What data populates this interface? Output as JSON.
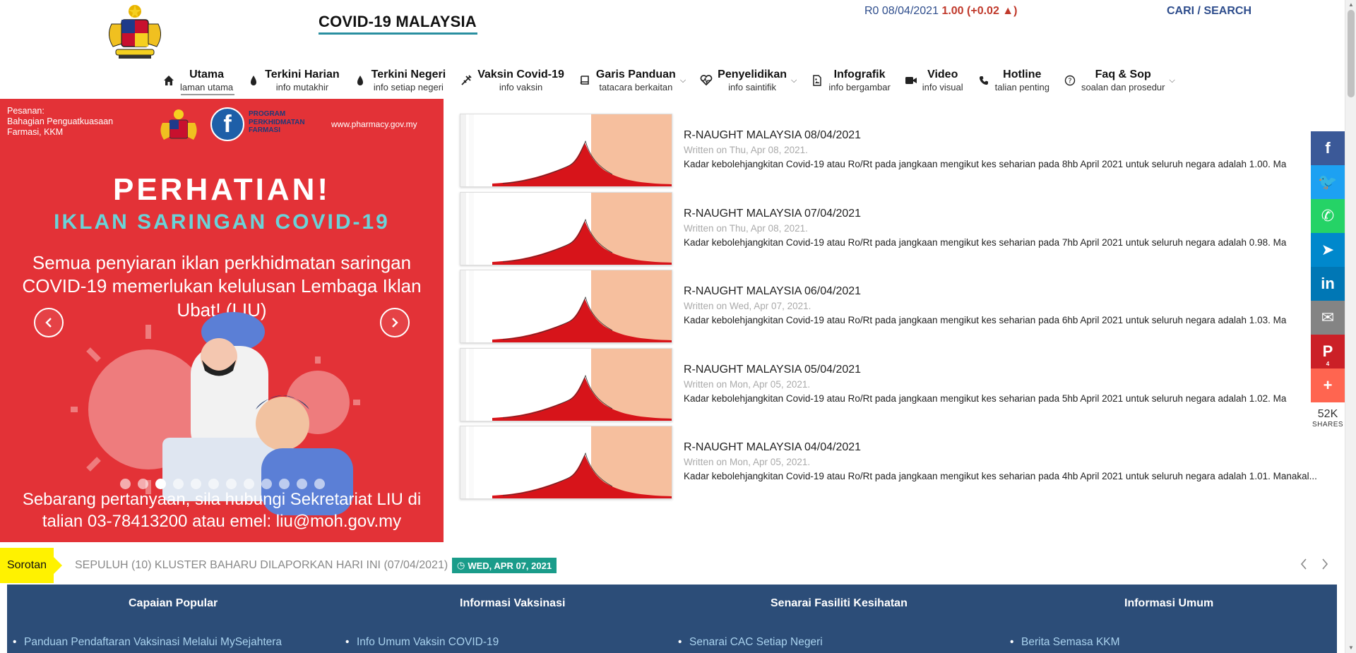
{
  "header": {
    "site_title": "COVID-19 MALAYSIA",
    "r0": {
      "prefix": "R0 08/04/2021",
      "value": "1.00 (+0.02 ▲)"
    },
    "search_link": "CARI / SEARCH"
  },
  "nav": [
    {
      "label": "Utama",
      "sub": "laman utama",
      "icon": "home-icon"
    },
    {
      "label": "Terkini Harian",
      "sub": "info mutakhir",
      "icon": "syringe-icon"
    },
    {
      "label": "Terkini Negeri",
      "sub": "info setiap negeri",
      "icon": "syringe-icon"
    },
    {
      "label": "Vaksin Covid-19",
      "sub": "info vaksin",
      "icon": "vaccine-icon"
    },
    {
      "label": "Garis Panduan",
      "sub": "tatacara berkaitan",
      "icon": "book-icon"
    },
    {
      "label": "Penyelidikan",
      "sub": "info saintifik",
      "icon": "heartbeat-icon"
    },
    {
      "label": "Infografik",
      "sub": "info bergambar",
      "icon": "image-file-icon"
    },
    {
      "label": "Video",
      "sub": "info visual",
      "icon": "video-icon"
    },
    {
      "label": "Hotline",
      "sub": "talian penting",
      "icon": "phone-icon"
    },
    {
      "label": "Faq & Sop",
      "sub": "soalan dan prosedur",
      "icon": "question-icon"
    }
  ],
  "slider": {
    "message": [
      "Pesanan:",
      "Bahagian Penguatkuasaan",
      "Farmasi, KKM"
    ],
    "program": [
      "PROGRAM",
      "PERKHIDMATAN",
      "FARMASI"
    ],
    "url": "www.pharmacy.gov.my",
    "headline": "PERHATIAN!",
    "subheadline": "IKLAN SARINGAN COVID-19",
    "body": "Semua penyiaran iklan perkhidmatan saringan COVID-19 memerlukan kelulusan Lembaga Iklan Ubat! (LIU)",
    "footer": "Sebarang pertanyaan, sila hubungi Sekretariat LIU di talian 03-78413200 atau emel: liu@moh.gov.my",
    "dot_count": 12,
    "active_dot": 2
  },
  "articles": [
    {
      "title": "R-NAUGHT MALAYSIA 08/04/2021",
      "date": "Written on Thu, Apr 08, 2021.",
      "desc": "Kadar kebolehjangkitan Covid-19 atau Ro/Rt pada jangkaan mengikut kes seharian pada 8hb April 2021 untuk seluruh negara adalah 1.00. Ma"
    },
    {
      "title": "R-NAUGHT MALAYSIA 07/04/2021",
      "date": "Written on Thu, Apr 08, 2021.",
      "desc": "Kadar kebolehjangkitan Covid-19 atau Ro/Rt pada jangkaan mengikut kes seharian pada 7hb April 2021 untuk seluruh negara adalah 0.98. Ma"
    },
    {
      "title": "R-NAUGHT MALAYSIA 06/04/2021",
      "date": "Written on Wed, Apr 07, 2021.",
      "desc": "Kadar kebolehjangkitan Covid-19 atau Ro/Rt pada jangkaan mengikut kes seharian pada 6hb April 2021 untuk seluruh negara adalah 1.03. Ma"
    },
    {
      "title": "R-NAUGHT MALAYSIA 05/04/2021",
      "date": "Written on Mon, Apr 05, 2021.",
      "desc": "Kadar kebolehjangkitan Covid-19 atau Ro/Rt pada jangkaan mengikut kes seharian pada 5hb April 2021 untuk seluruh negara adalah 1.02. Ma"
    },
    {
      "title": "R-NAUGHT MALAYSIA 04/04/2021",
      "date": "Written on Mon, Apr 05, 2021.",
      "desc": "Kadar kebolehjangkitan Covid-19 atau Ro/Rt pada jangkaan mengikut kes seharian pada 4hb April 2021 untuk seluruh negara adalah 1.01. Manakal..."
    }
  ],
  "share": {
    "buttons": [
      {
        "name": "facebook",
        "icon": "facebook-icon",
        "glyph": "f",
        "color": "#3b5998"
      },
      {
        "name": "twitter",
        "icon": "twitter-icon",
        "glyph": "🐦",
        "color": "#1da1f2"
      },
      {
        "name": "whatsapp",
        "icon": "whatsapp-icon",
        "glyph": "✆",
        "color": "#25d366"
      },
      {
        "name": "telegram",
        "icon": "telegram-icon",
        "glyph": "➤",
        "color": "#0088cc"
      },
      {
        "name": "linkedin",
        "icon": "linkedin-icon",
        "glyph": "in",
        "color": "#0077b5"
      },
      {
        "name": "email",
        "icon": "email-icon",
        "glyph": "✉",
        "color": "#848484"
      },
      {
        "name": "pinterest",
        "icon": "pinterest-icon",
        "glyph": "P",
        "color": "#cb2027",
        "count": "4"
      },
      {
        "name": "more",
        "icon": "plus-icon",
        "glyph": "+",
        "color": "#ff6550"
      }
    ],
    "total": "52K",
    "total_label": "SHARES"
  },
  "ticker": {
    "label": "Sorotan",
    "text": "SEPULUH (10) KLUSTER BAHARU DILAPORKAN HARI INI (07/04/2021)",
    "date": "WED, APR 07, 2021"
  },
  "footer": {
    "columns": [
      {
        "title": "Capaian Popular",
        "first_item": "Panduan Pendaftaran Vaksinasi Melalui MySejahtera"
      },
      {
        "title": "Informasi Vaksinasi",
        "first_item": "Info Umum Vaksin COVID-19"
      },
      {
        "title": "Senarai Fasiliti Kesihatan",
        "first_item": "Senarai CAC Setiap Negeri"
      },
      {
        "title": "Informasi Umum",
        "first_item": "Berita Semasa KKM"
      }
    ]
  },
  "colors": {
    "slider_bg": "#e8343a",
    "footer_bg": "#2c4d78",
    "accent_teal": "#2a8fa0",
    "ticker_label": "#fff200",
    "date_badge": "#1a9c8a"
  }
}
